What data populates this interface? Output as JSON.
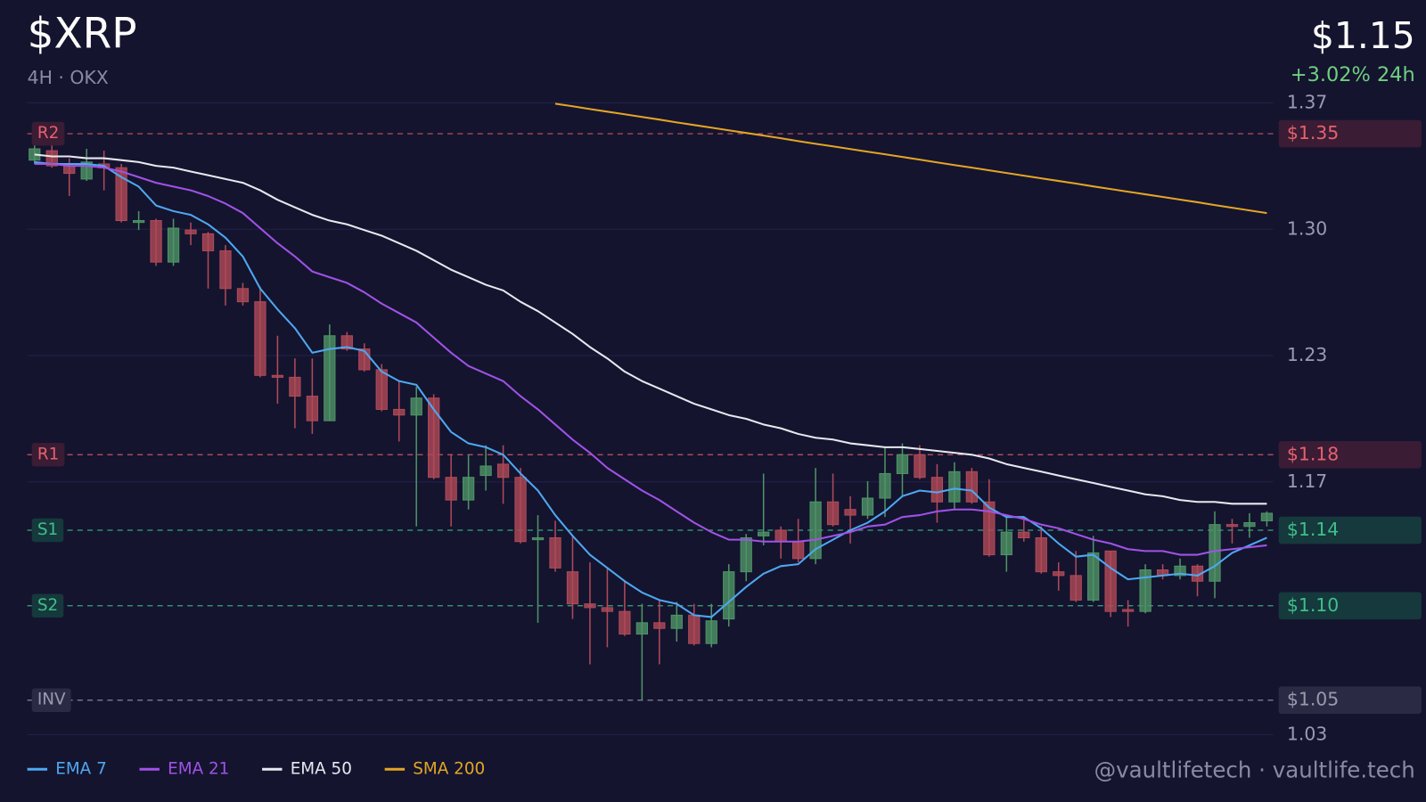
{
  "header": {
    "title": "$XRP",
    "subtitle": "4H · OKX",
    "price": "$1.15",
    "change": "+3.02% 24h"
  },
  "chart_data": {
    "type": "candlestick",
    "open": [
      1.336,
      1.341,
      1.333,
      1.326,
      1.334,
      1.332,
      1.303,
      1.304,
      1.282,
      1.299,
      1.297,
      1.288,
      1.268,
      1.261,
      1.222,
      1.221,
      1.211,
      1.198,
      1.243,
      1.236,
      1.225,
      1.204,
      1.201,
      1.21,
      1.168,
      1.156,
      1.169,
      1.175,
      1.168,
      1.135,
      1.136,
      1.118,
      1.101,
      1.099,
      1.097,
      1.085,
      1.091,
      1.088,
      1.095,
      1.08,
      1.093,
      1.118,
      1.137,
      1.14,
      1.134,
      1.125,
      1.155,
      1.151,
      1.148,
      1.157,
      1.17,
      1.18,
      1.168,
      1.155,
      1.171,
      1.155,
      1.127,
      1.139,
      1.136,
      1.118,
      1.116,
      1.103,
      1.129,
      1.098,
      1.097,
      1.119,
      1.116,
      1.121,
      1.113,
      1.143,
      1.142,
      1.145
    ],
    "high": [
      1.344,
      1.353,
      1.337,
      1.342,
      1.341,
      1.334,
      1.309,
      1.305,
      1.305,
      1.303,
      1.298,
      1.291,
      1.271,
      1.269,
      1.243,
      1.231,
      1.231,
      1.249,
      1.245,
      1.239,
      1.228,
      1.219,
      1.216,
      1.212,
      1.18,
      1.18,
      1.185,
      1.185,
      1.173,
      1.148,
      1.145,
      1.137,
      1.123,
      1.12,
      1.113,
      1.101,
      1.103,
      1.102,
      1.101,
      1.101,
      1.122,
      1.138,
      1.17,
      1.142,
      1.146,
      1.173,
      1.17,
      1.158,
      1.166,
      1.184,
      1.186,
      1.185,
      1.175,
      1.176,
      1.173,
      1.167,
      1.147,
      1.147,
      1.142,
      1.123,
      1.129,
      1.137,
      1.129,
      1.103,
      1.122,
      1.122,
      1.125,
      1.122,
      1.15,
      1.146,
      1.149,
      1.15
    ],
    "low": [
      1.334,
      1.332,
      1.317,
      1.325,
      1.32,
      1.303,
      1.299,
      1.28,
      1.28,
      1.291,
      1.268,
      1.259,
      1.259,
      1.221,
      1.207,
      1.194,
      1.191,
      1.198,
      1.235,
      1.224,
      1.203,
      1.187,
      1.142,
      1.167,
      1.142,
      1.151,
      1.161,
      1.154,
      1.133,
      1.091,
      1.118,
      1.093,
      1.069,
      1.078,
      1.084,
      1.05,
      1.069,
      1.081,
      1.079,
      1.078,
      1.089,
      1.113,
      1.132,
      1.125,
      1.123,
      1.122,
      1.142,
      1.133,
      1.146,
      1.147,
      1.158,
      1.167,
      1.144,
      1.151,
      1.154,
      1.126,
      1.118,
      1.134,
      1.117,
      1.108,
      1.102,
      1.102,
      1.094,
      1.089,
      1.096,
      1.114,
      1.114,
      1.105,
      1.104,
      1.133,
      1.136,
      1.142
    ],
    "close": [
      1.342,
      1.333,
      1.329,
      1.335,
      1.332,
      1.304,
      1.304,
      1.282,
      1.3,
      1.297,
      1.288,
      1.268,
      1.261,
      1.222,
      1.221,
      1.211,
      1.198,
      1.243,
      1.236,
      1.225,
      1.204,
      1.201,
      1.21,
      1.168,
      1.156,
      1.168,
      1.174,
      1.168,
      1.134,
      1.136,
      1.12,
      1.101,
      1.099,
      1.097,
      1.085,
      1.091,
      1.088,
      1.095,
      1.08,
      1.092,
      1.118,
      1.136,
      1.139,
      1.134,
      1.125,
      1.155,
      1.143,
      1.148,
      1.157,
      1.17,
      1.18,
      1.168,
      1.155,
      1.171,
      1.155,
      1.127,
      1.139,
      1.136,
      1.118,
      1.116,
      1.103,
      1.128,
      1.097,
      1.097,
      1.119,
      1.116,
      1.121,
      1.113,
      1.143,
      1.142,
      1.144,
      1.149
    ],
    "up_color": "#4f9466",
    "down_color": "#b04a58",
    "ylim": [
      1.0317,
      1.3664
    ],
    "yticks": [
      {
        "value": 1.3664,
        "label": "1.37"
      },
      {
        "value": 1.2994,
        "label": "1.30"
      },
      {
        "value": 1.2325,
        "label": "1.23"
      },
      {
        "value": 1.1656,
        "label": "1.17"
      },
      {
        "value": 1.0317,
        "label": "1.03"
      }
    ],
    "grid": true,
    "series": [
      {
        "name": "EMA 7",
        "color": "#4ea8f0",
        "values": [
          1.335,
          1.334,
          1.334,
          1.334,
          1.333,
          1.327,
          1.322,
          1.312,
          1.309,
          1.307,
          1.302,
          1.295,
          1.285,
          1.268,
          1.257,
          1.247,
          1.234,
          1.236,
          1.237,
          1.235,
          1.224,
          1.219,
          1.217,
          1.204,
          1.192,
          1.186,
          1.184,
          1.18,
          1.17,
          1.161,
          1.148,
          1.137,
          1.127,
          1.12,
          1.113,
          1.107,
          1.103,
          1.101,
          1.095,
          1.094,
          1.102,
          1.11,
          1.117,
          1.121,
          1.122,
          1.13,
          1.135,
          1.14,
          1.144,
          1.15,
          1.158,
          1.161,
          1.16,
          1.162,
          1.161,
          1.152,
          1.147,
          1.147,
          1.141,
          1.133,
          1.126,
          1.127,
          1.12,
          1.114,
          1.115,
          1.116,
          1.117,
          1.116,
          1.121,
          1.128,
          1.132,
          1.136
        ]
      },
      {
        "name": "EMA 21",
        "color": "#a052e6",
        "values": [
          1.334,
          1.334,
          1.333,
          1.333,
          1.332,
          1.33,
          1.327,
          1.324,
          1.322,
          1.32,
          1.317,
          1.313,
          1.308,
          1.3,
          1.292,
          1.285,
          1.277,
          1.274,
          1.271,
          1.266,
          1.26,
          1.255,
          1.25,
          1.242,
          1.234,
          1.227,
          1.223,
          1.219,
          1.211,
          1.204,
          1.196,
          1.188,
          1.181,
          1.173,
          1.167,
          1.161,
          1.156,
          1.15,
          1.144,
          1.139,
          1.135,
          1.135,
          1.134,
          1.134,
          1.134,
          1.135,
          1.137,
          1.139,
          1.142,
          1.143,
          1.147,
          1.148,
          1.15,
          1.151,
          1.151,
          1.15,
          1.148,
          1.146,
          1.143,
          1.141,
          1.138,
          1.135,
          1.133,
          1.13,
          1.129,
          1.129,
          1.127,
          1.127,
          1.129,
          1.13,
          1.131,
          1.132
        ]
      },
      {
        "name": "EMA 50",
        "color": "#e8e8f0",
        "values": [
          1.339,
          1.338,
          1.338,
          1.337,
          1.337,
          1.336,
          1.335,
          1.333,
          1.332,
          1.33,
          1.328,
          1.326,
          1.324,
          1.32,
          1.315,
          1.311,
          1.307,
          1.304,
          1.302,
          1.299,
          1.296,
          1.292,
          1.288,
          1.283,
          1.278,
          1.274,
          1.27,
          1.267,
          1.261,
          1.256,
          1.25,
          1.244,
          1.237,
          1.231,
          1.224,
          1.219,
          1.215,
          1.211,
          1.207,
          1.204,
          1.201,
          1.199,
          1.196,
          1.194,
          1.191,
          1.189,
          1.188,
          1.186,
          1.185,
          1.184,
          1.184,
          1.183,
          1.182,
          1.181,
          1.18,
          1.178,
          1.175,
          1.173,
          1.171,
          1.169,
          1.167,
          1.165,
          1.163,
          1.161,
          1.159,
          1.158,
          1.156,
          1.155,
          1.155,
          1.154,
          1.154,
          1.154
        ]
      },
      {
        "name": "SMA 200",
        "color": "#e3a524",
        "values": [
          null,
          null,
          null,
          null,
          null,
          null,
          null,
          null,
          null,
          null,
          null,
          null,
          null,
          null,
          null,
          null,
          null,
          null,
          null,
          null,
          null,
          null,
          null,
          null,
          null,
          null,
          null,
          null,
          null,
          null,
          1.3659,
          1.3645,
          1.3631,
          1.3617,
          1.3603,
          1.3589,
          1.3575,
          1.356,
          1.3546,
          1.3532,
          1.3518,
          1.3504,
          1.349,
          1.3476,
          1.3461,
          1.3447,
          1.3433,
          1.3419,
          1.3405,
          1.3391,
          1.3377,
          1.3363,
          1.3348,
          1.3334,
          1.332,
          1.3306,
          1.3292,
          1.3278,
          1.3264,
          1.325,
          1.3236,
          1.3221,
          1.3207,
          1.3193,
          1.3179,
          1.3165,
          1.3151,
          1.3137,
          1.3122,
          1.3108,
          1.3094,
          1.308
        ]
      }
    ],
    "levels": [
      {
        "name": "R2",
        "value": 1.35,
        "label": "$1.35",
        "color": "#e5616e",
        "fill": "#3a1c34"
      },
      {
        "name": "R1",
        "value": 1.18,
        "label": "$1.18",
        "color": "#e5616e",
        "fill": "#3a1c34"
      },
      {
        "name": "S1",
        "value": 1.14,
        "label": "$1.14",
        "color": "#3fbf8a",
        "fill": "#15393c"
      },
      {
        "name": "S2",
        "value": 1.1,
        "label": "$1.10",
        "color": "#3fbf8a",
        "fill": "#15393c"
      },
      {
        "name": "INV",
        "value": 1.05,
        "label": "$1.05",
        "color": "#9a9aae",
        "fill": "#2a2a44"
      }
    ]
  },
  "footer": {
    "watermark": "@vaultlifetech · vaultlife.tech"
  }
}
